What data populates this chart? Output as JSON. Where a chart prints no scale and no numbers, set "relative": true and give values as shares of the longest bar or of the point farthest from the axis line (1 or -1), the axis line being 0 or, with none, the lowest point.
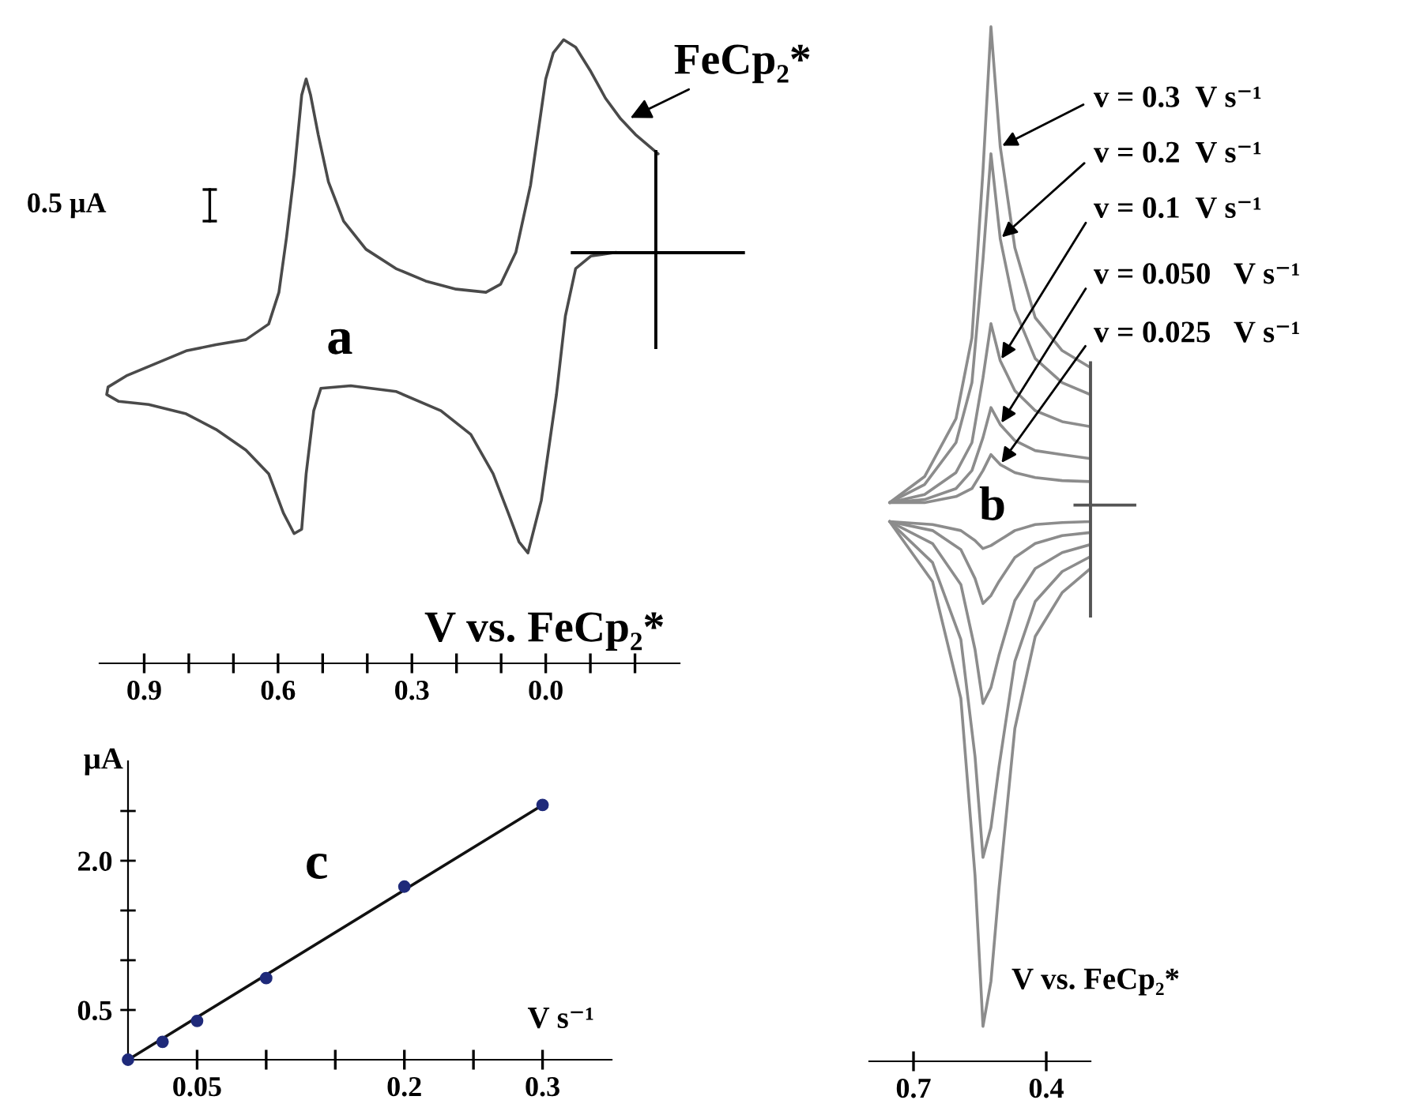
{
  "chart_data": [
    {
      "type": "line",
      "relative": true,
      "xlabel": "V vs. FeCp₂*",
      "xlim": [
        1.0,
        -0.3
      ],
      "xticks": [
        {
          "value": 0.9,
          "label": "0.9"
        },
        {
          "value": 0.8,
          "label": null
        },
        {
          "value": 0.7,
          "label": null
        },
        {
          "value": 0.6,
          "label": "0.6"
        },
        {
          "value": 0.5,
          "label": null
        },
        {
          "value": 0.4,
          "label": null
        },
        {
          "value": 0.3,
          "label": "0.3"
        },
        {
          "value": 0.2,
          "label": null
        },
        {
          "value": 0.1,
          "label": null
        },
        {
          "value": 0.0,
          "label": "0.0"
        },
        {
          "value": -0.1,
          "label": null
        },
        {
          "value": -0.2,
          "label": null
        }
      ],
      "tick_labels": "x",
      "annotations": [
        "a",
        {
          "text": "FeCp₂*",
          "x": -0.185,
          "y": 0.873
        },
        "0.5 μA"
      ],
      "series": [
        {
          "color": "#4a4a4a",
          "x": [
            -0.252,
            -0.201,
            -0.168,
            -0.134,
            -0.101,
            -0.067,
            -0.04,
            -0.017,
            0.0,
            0.034,
            0.067,
            0.101,
            0.134,
            0.201,
            0.269,
            0.336,
            0.403,
            0.453,
            0.487,
            0.51,
            0.527,
            0.537,
            0.547,
            0.564,
            0.581,
            0.598,
            0.621,
            0.672,
            0.739,
            0.806,
            0.873,
            0.94,
            0.981,
            0.984,
            0.957,
            0.89,
            0.806,
            0.739,
            0.672,
            0.621,
            0.588,
            0.564,
            0.547,
            0.537,
            0.52,
            0.504,
            0.437,
            0.336,
            0.235,
            0.168,
            0.118,
            0.084,
            0.06,
            0.04,
            0.01,
            -0.024,
            -0.044,
            -0.067,
            -0.101,
            -0.158
          ],
          "values": [
            0.817,
            0.848,
            0.873,
            0.906,
            0.949,
            0.988,
            1.0,
            0.979,
            0.937,
            0.767,
            0.659,
            0.608,
            0.595,
            0.6,
            0.613,
            0.633,
            0.664,
            0.709,
            0.772,
            0.848,
            0.911,
            0.937,
            0.911,
            0.784,
            0.683,
            0.595,
            0.544,
            0.519,
            0.511,
            0.501,
            0.481,
            0.461,
            0.443,
            0.431,
            0.42,
            0.415,
            0.4,
            0.375,
            0.342,
            0.304,
            0.241,
            0.208,
            0.215,
            0.304,
            0.405,
            0.441,
            0.445,
            0.436,
            0.405,
            0.367,
            0.304,
            0.241,
            0.195,
            0.177,
            0.261,
            0.431,
            0.557,
            0.633,
            0.653,
            0.659
          ]
        }
      ]
    },
    {
      "type": "line",
      "relative": true,
      "xlabel": "V vs. FeCp₂*",
      "xlim": [
        0.8,
        0.3
      ],
      "xticks": [
        {
          "value": 0.7,
          "label": "0.7"
        },
        {
          "value": 0.4,
          "label": "0.4"
        }
      ],
      "tick_labels": "x",
      "annotations": [
        "b"
      ],
      "series": [
        {
          "name": "v = 0.3  V s⁻¹",
          "color": "#8c8c8c",
          "x": [
            0.754,
            0.675,
            0.604,
            0.568,
            0.543,
            0.525,
            0.504,
            0.471,
            0.425,
            0.364,
            0.3,
            0.3,
            0.364,
            0.425,
            0.471,
            0.507,
            0.525,
            0.543,
            0.561,
            0.593,
            0.657,
            0.754
          ],
          "values": [
            0.524,
            0.55,
            0.608,
            0.689,
            0.856,
            1.0,
            0.88,
            0.779,
            0.709,
            0.676,
            0.659,
            0.458,
            0.434,
            0.39,
            0.298,
            0.137,
            0.045,
            0.0,
            0.151,
            0.328,
            0.445,
            0.505
          ]
        },
        {
          "name": "v = 0.2  V s⁻¹",
          "color": "#8c8c8c",
          "x": [
            0.754,
            0.675,
            0.604,
            0.568,
            0.543,
            0.525,
            0.504,
            0.471,
            0.425,
            0.364,
            0.3,
            0.3,
            0.364,
            0.425,
            0.471,
            0.507,
            0.525,
            0.543,
            0.561,
            0.593,
            0.657,
            0.754
          ],
          "values": [
            0.524,
            0.542,
            0.584,
            0.644,
            0.767,
            0.873,
            0.788,
            0.717,
            0.668,
            0.644,
            0.632,
            0.47,
            0.455,
            0.425,
            0.365,
            0.259,
            0.199,
            0.169,
            0.27,
            0.387,
            0.464,
            0.505
          ]
        },
        {
          "name": "v = 0.1  V s⁻¹",
          "color": "#8c8c8c",
          "x": [
            0.754,
            0.675,
            0.604,
            0.568,
            0.543,
            0.525,
            0.504,
            0.471,
            0.425,
            0.364,
            0.3,
            0.3,
            0.364,
            0.425,
            0.471,
            0.507,
            0.525,
            0.543,
            0.561,
            0.593,
            0.657,
            0.754
          ],
          "values": [
            0.524,
            0.532,
            0.554,
            0.584,
            0.649,
            0.703,
            0.666,
            0.636,
            0.616,
            0.605,
            0.6,
            0.482,
            0.474,
            0.458,
            0.426,
            0.371,
            0.339,
            0.323,
            0.377,
            0.442,
            0.483,
            0.505
          ]
        },
        {
          "name": "v = 0.050   V s⁻¹",
          "color": "#8c8c8c",
          "x": [
            0.754,
            0.675,
            0.604,
            0.568,
            0.543,
            0.525,
            0.504,
            0.471,
            0.425,
            0.364,
            0.3,
            0.3,
            0.364,
            0.425,
            0.471,
            0.507,
            0.525,
            0.543,
            0.561,
            0.593,
            0.657,
            0.754
          ],
          "values": [
            0.524,
            0.527,
            0.538,
            0.556,
            0.589,
            0.619,
            0.602,
            0.586,
            0.576,
            0.572,
            0.568,
            0.494,
            0.491,
            0.483,
            0.469,
            0.445,
            0.431,
            0.423,
            0.448,
            0.477,
            0.496,
            0.505
          ]
        },
        {
          "name": "v = 0.025   V s⁻¹",
          "color": "#8c8c8c",
          "x": [
            0.754,
            0.675,
            0.604,
            0.568,
            0.543,
            0.525,
            0.504,
            0.471,
            0.425,
            0.364,
            0.3,
            0.3,
            0.364,
            0.425,
            0.471,
            0.507,
            0.525,
            0.543,
            0.561,
            0.593,
            0.657,
            0.754
          ],
          "values": [
            0.524,
            0.524,
            0.53,
            0.538,
            0.556,
            0.572,
            0.562,
            0.554,
            0.549,
            0.546,
            0.545,
            0.505,
            0.504,
            0.502,
            0.496,
            0.486,
            0.481,
            0.478,
            0.486,
            0.496,
            0.502,
            0.505
          ]
        }
      ]
    },
    {
      "type": "scatter",
      "xlabel": "V s⁻¹",
      "ylabel": "μA",
      "xlim": [
        0,
        0.35
      ],
      "ylim": [
        0,
        3.0
      ],
      "marker": "circle",
      "xticks": [
        {
          "value": 0.05,
          "label": "0.05"
        },
        {
          "value": 0.1,
          "label": null
        },
        {
          "value": 0.15,
          "label": null
        },
        {
          "value": 0.2,
          "label": "0.2"
        },
        {
          "value": 0.25,
          "label": null
        },
        {
          "value": 0.3,
          "label": "0.3"
        }
      ],
      "yticks": [
        {
          "value": 0.5,
          "label": "0.5"
        },
        {
          "value": 1.0,
          "label": null
        },
        {
          "value": 1.5,
          "label": null
        },
        {
          "value": 2.0,
          "label": "2.0"
        },
        {
          "value": 2.5,
          "label": null
        }
      ],
      "annotations": [
        "c"
      ],
      "series": [
        {
          "type": "line",
          "marker": "none",
          "color": "#111111",
          "x": [
            0,
            0.3
          ],
          "values": [
            0,
            2.56
          ]
        },
        {
          "color": "#1f2a7a",
          "x": [
            0,
            0.025,
            0.05,
            0.1,
            0.2,
            0.3
          ],
          "values": [
            0,
            0.18,
            0.39,
            0.82,
            1.74,
            2.56
          ]
        }
      ]
    }
  ]
}
